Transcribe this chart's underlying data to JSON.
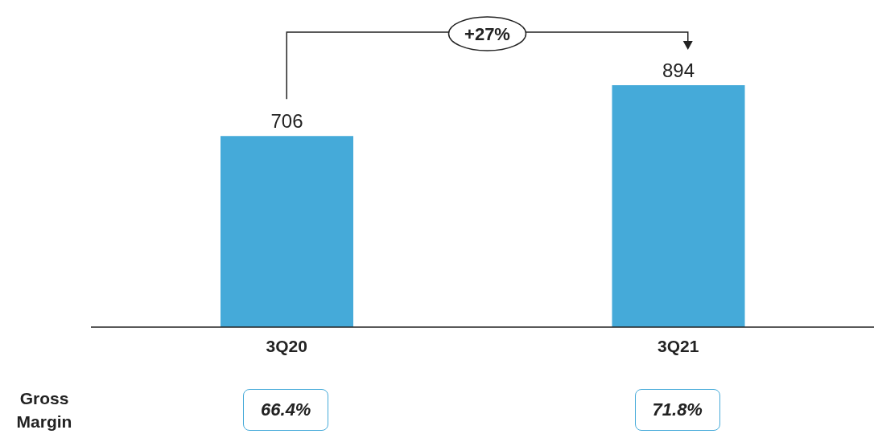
{
  "chart_data": {
    "type": "bar",
    "categories": [
      "3Q20",
      "3Q21"
    ],
    "values": [
      706,
      894
    ],
    "color": "#45aad9",
    "data_labels": true,
    "annotations": [
      "+27%",
      "Gross Margin",
      "66.4%",
      "71.8%"
    ]
  }
}
